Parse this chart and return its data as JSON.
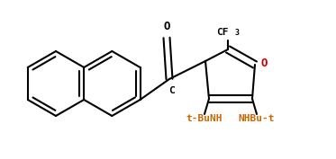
{
  "background": "#ffffff",
  "line_color": "#000000",
  "line_width": 1.5,
  "figsize": [
    3.73,
    1.77
  ],
  "dpi": 100,
  "font_size_main": 8,
  "font_size_sub": 6,
  "font_size_o": 8,
  "tbunh_label": "t-BuNH",
  "nhbut_label": "NHBu-t",
  "cf3_label": "CF",
  "cf3_sub": "3",
  "o_carbonyl": "O",
  "c_carbonyl": "C",
  "o_furan": "O",
  "orange_color": "#cc6600",
  "red_color": "#cc0000",
  "black_color": "#000000"
}
